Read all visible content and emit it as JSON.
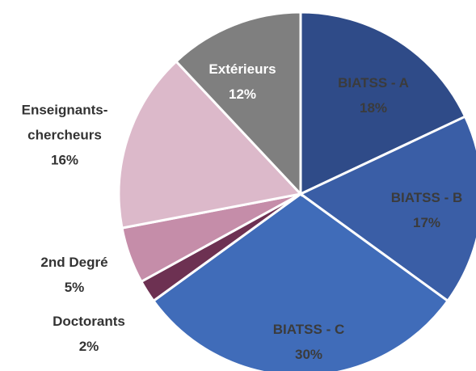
{
  "chart_data": {
    "type": "pie",
    "categories": [
      "BIATSS - A",
      "BIATSS - B",
      "BIATSS - C",
      "Doctorants",
      "2nd Degré",
      "Enseignants-chercheurs",
      "Extérieurs"
    ],
    "values": [
      18,
      17,
      30,
      2,
      5,
      16,
      12
    ],
    "value_labels": [
      "18%",
      "17%",
      "30%",
      "2%",
      "5%",
      "16%",
      "12%"
    ],
    "colors": [
      "#2f4b88",
      "#3a5ea6",
      "#406cb9",
      "#6d3152",
      "#c58da9",
      "#dcb9ca",
      "#7f7f7f"
    ]
  }
}
